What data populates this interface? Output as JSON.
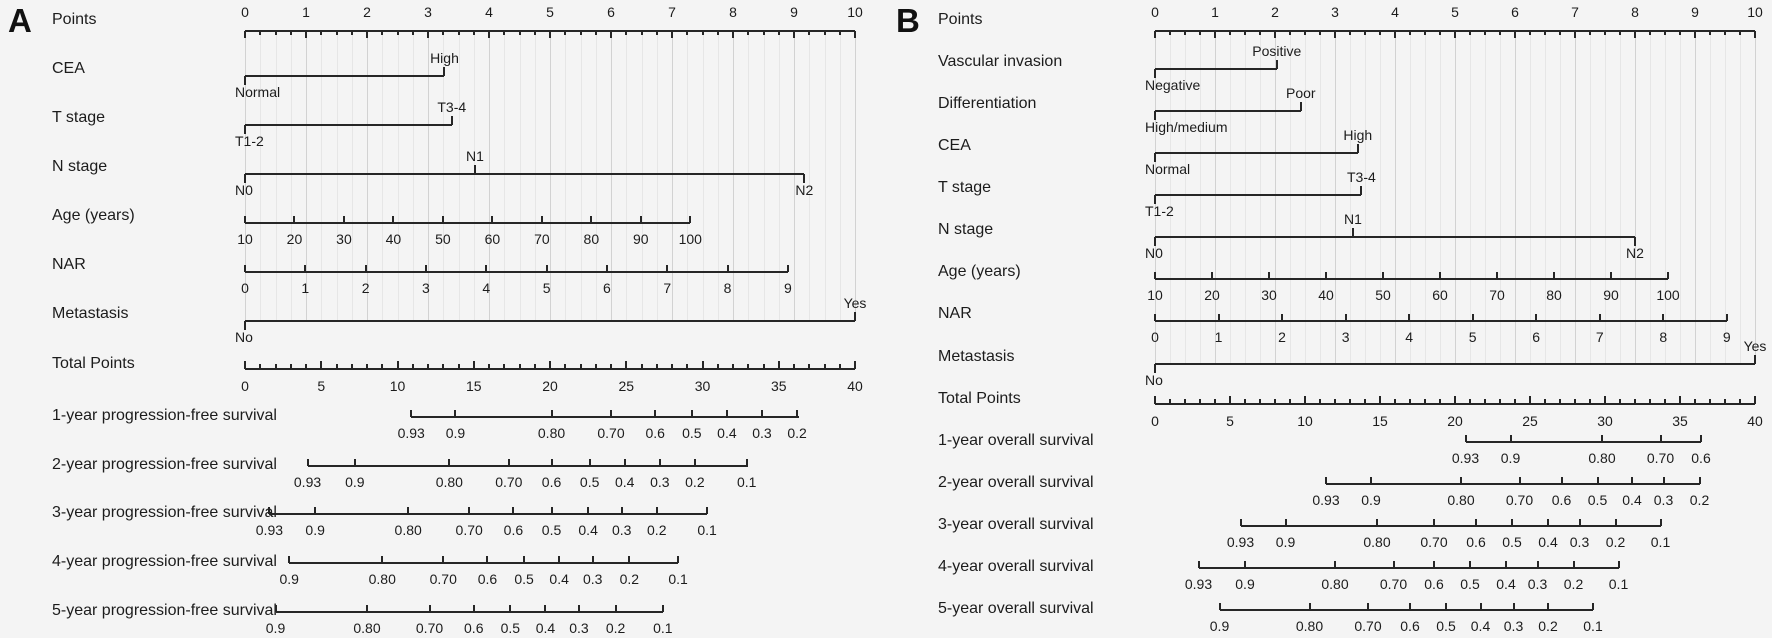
{
  "chart_data": [
    {
      "panel": "A",
      "type": "nomogram",
      "points_axis_range": [
        0,
        10
      ],
      "total_points_range": [
        0,
        40
      ],
      "grid": true,
      "rows": [
        {
          "kind": "points",
          "label": "Points",
          "tick_labels": [
            "0",
            "1",
            "2",
            "3",
            "4",
            "5",
            "6",
            "7",
            "8",
            "9",
            "10"
          ]
        },
        {
          "kind": "category",
          "label": "CEA",
          "ticks": [
            {
              "v": "Normal",
              "p": 0,
              "side": "below"
            },
            {
              "v": "High",
              "p": 3.27,
              "side": "above"
            }
          ]
        },
        {
          "kind": "category",
          "label": "T stage",
          "ticks": [
            {
              "v": "T1-2",
              "p": 0,
              "side": "below"
            },
            {
              "v": "T3-4",
              "p": 3.39,
              "side": "above"
            }
          ]
        },
        {
          "kind": "category",
          "label": "N stage",
          "ticks": [
            {
              "v": "N0",
              "p": 0,
              "side": "below"
            },
            {
              "v": "N1",
              "p": 3.77,
              "side": "above"
            },
            {
              "v": "N2",
              "p": 9.17,
              "side": "below"
            }
          ]
        },
        {
          "kind": "axis",
          "label": "Age (years)",
          "start": 0,
          "end": 7.3,
          "tick_labels": [
            "10",
            "20",
            "30",
            "40",
            "50",
            "60",
            "70",
            "80",
            "90",
            "100"
          ]
        },
        {
          "kind": "axis",
          "label": "NAR",
          "start": 0,
          "end": 8.9,
          "tick_labels": [
            "0",
            "1",
            "2",
            "3",
            "4",
            "5",
            "6",
            "7",
            "8",
            "9"
          ]
        },
        {
          "kind": "category",
          "label": "Metastasis",
          "ticks": [
            {
              "v": "No",
              "p": 0,
              "side": "below"
            },
            {
              "v": "Yes",
              "p": 10,
              "side": "above"
            }
          ]
        },
        {
          "kind": "total",
          "label": "Total Points",
          "tick_labels": [
            "0",
            "5",
            "10",
            "15",
            "20",
            "25",
            "30",
            "35",
            "40"
          ]
        },
        {
          "kind": "survival",
          "label": "1-year progression-free survival",
          "line": [
            10.9,
            36.3
          ],
          "ticks": [
            {
              "v": "0.93",
              "tp": 10.9
            },
            {
              "v": "0.9",
              "tp": 13.8
            },
            {
              "v": "0.80",
              "tp": 20.1
            },
            {
              "v": "0.70",
              "tp": 24.0
            },
            {
              "v": "0.6",
              "tp": 26.9
            },
            {
              "v": "0.5",
              "tp": 29.3
            },
            {
              "v": "0.4",
              "tp": 31.6
            },
            {
              "v": "0.3",
              "tp": 33.9
            },
            {
              "v": "0.2",
              "tp": 36.2
            }
          ]
        },
        {
          "kind": "survival",
          "label": "2-year progression-free survival",
          "line": [
            4.1,
            33.0
          ],
          "ticks": [
            {
              "v": "0.93",
              "tp": 4.1
            },
            {
              "v": "0.9",
              "tp": 7.2
            },
            {
              "v": "0.80",
              "tp": 13.4
            },
            {
              "v": "0.70",
              "tp": 17.3
            },
            {
              "v": "0.6",
              "tp": 20.1
            },
            {
              "v": "0.5",
              "tp": 22.6
            },
            {
              "v": "0.4",
              "tp": 24.9
            },
            {
              "v": "0.3",
              "tp": 27.2
            },
            {
              "v": "0.2",
              "tp": 29.5
            },
            {
              "v": "0.1",
              "tp": 32.9
            }
          ]
        },
        {
          "kind": "survival",
          "label": "3-year progression-free survival",
          "line": [
            1.6,
            30.3
          ],
          "ticks": [
            {
              "v": "0.93",
              "tp": 1.6
            },
            {
              "v": "0.9",
              "tp": 4.6
            },
            {
              "v": "0.80",
              "tp": 10.7
            },
            {
              "v": "0.70",
              "tp": 14.7
            },
            {
              "v": "0.6",
              "tp": 17.6
            },
            {
              "v": "0.5",
              "tp": 20.1
            },
            {
              "v": "0.4",
              "tp": 22.5
            },
            {
              "v": "0.3",
              "tp": 24.7
            },
            {
              "v": "0.2",
              "tp": 27.0
            },
            {
              "v": "0.1",
              "tp": 30.3
            }
          ]
        },
        {
          "kind": "survival",
          "label": "4-year progression-free survival",
          "line": [
            2.9,
            28.4
          ],
          "ticks": [
            {
              "v": "0.9",
              "tp": 2.9
            },
            {
              "v": "0.80",
              "tp": 9.0
            },
            {
              "v": "0.70",
              "tp": 13.0
            },
            {
              "v": "0.6",
              "tp": 15.9
            },
            {
              "v": "0.5",
              "tp": 18.3
            },
            {
              "v": "0.4",
              "tp": 20.6
            },
            {
              "v": "0.3",
              "tp": 22.8
            },
            {
              "v": "0.2",
              "tp": 25.2
            },
            {
              "v": "0.1",
              "tp": 28.4
            }
          ]
        },
        {
          "kind": "survival",
          "label": "5-year progression-free survival",
          "line": [
            2.0,
            27.4
          ],
          "ticks": [
            {
              "v": "0.9",
              "tp": 2.0
            },
            {
              "v": "0.80",
              "tp": 8.0
            },
            {
              "v": "0.70",
              "tp": 12.1
            },
            {
              "v": "0.6",
              "tp": 15.0
            },
            {
              "v": "0.5",
              "tp": 17.4
            },
            {
              "v": "0.4",
              "tp": 19.7
            },
            {
              "v": "0.3",
              "tp": 21.9
            },
            {
              "v": "0.2",
              "tp": 24.3
            },
            {
              "v": "0.1",
              "tp": 27.4
            }
          ]
        }
      ]
    },
    {
      "panel": "B",
      "type": "nomogram",
      "points_axis_range": [
        0,
        10
      ],
      "total_points_range": [
        0,
        40
      ],
      "grid": true,
      "rows": [
        {
          "kind": "points",
          "label": "Points",
          "tick_labels": [
            "0",
            "1",
            "2",
            "3",
            "4",
            "5",
            "6",
            "7",
            "8",
            "9",
            "10"
          ]
        },
        {
          "kind": "category",
          "label": "Vascular invasion",
          "ticks": [
            {
              "v": "Negative",
              "p": 0,
              "side": "below"
            },
            {
              "v": "Positive",
              "p": 2.03,
              "side": "above"
            }
          ]
        },
        {
          "kind": "category",
          "label": "Differentiation",
          "ticks": [
            {
              "v": "High/medium",
              "p": 0,
              "side": "below"
            },
            {
              "v": "Poor",
              "p": 2.43,
              "side": "above"
            }
          ]
        },
        {
          "kind": "category",
          "label": "CEA",
          "ticks": [
            {
              "v": "Normal",
              "p": 0,
              "side": "below"
            },
            {
              "v": "High",
              "p": 3.38,
              "side": "above"
            }
          ]
        },
        {
          "kind": "category",
          "label": "T stage",
          "ticks": [
            {
              "v": "T1-2",
              "p": 0,
              "side": "below"
            },
            {
              "v": "T3-4",
              "p": 3.44,
              "side": "above"
            }
          ]
        },
        {
          "kind": "category",
          "label": "N stage",
          "ticks": [
            {
              "v": "N0",
              "p": 0,
              "side": "below"
            },
            {
              "v": "N1",
              "p": 3.3,
              "side": "above"
            },
            {
              "v": "N2",
              "p": 8.0,
              "side": "below"
            }
          ]
        },
        {
          "kind": "axis",
          "label": "Age (years)",
          "start": 0,
          "end": 8.55,
          "tick_labels": [
            "10",
            "20",
            "30",
            "40",
            "50",
            "60",
            "70",
            "80",
            "90",
            "100"
          ]
        },
        {
          "kind": "axis",
          "label": "NAR",
          "start": 0,
          "end": 9.53,
          "tick_labels": [
            "0",
            "1",
            "2",
            "3",
            "4",
            "5",
            "6",
            "7",
            "8",
            "9"
          ]
        },
        {
          "kind": "category",
          "label": "Metastasis",
          "ticks": [
            {
              "v": "No",
              "p": 0,
              "side": "below"
            },
            {
              "v": "Yes",
              "p": 10,
              "side": "above"
            }
          ]
        },
        {
          "kind": "total",
          "label": "Total Points",
          "tick_labels": [
            "0",
            "5",
            "10",
            "15",
            "20",
            "25",
            "30",
            "35",
            "40"
          ]
        },
        {
          "kind": "survival",
          "label": "1-year overall survival",
          "line": [
            20.7,
            36.4
          ],
          "ticks": [
            {
              "v": "0.93",
              "tp": 20.7
            },
            {
              "v": "0.9",
              "tp": 23.7
            },
            {
              "v": "0.80",
              "tp": 29.8
            },
            {
              "v": "0.70",
              "tp": 33.7
            },
            {
              "v": "0.6",
              "tp": 36.4
            }
          ]
        },
        {
          "kind": "survival",
          "label": "2-year overall survival",
          "line": [
            11.4,
            36.3
          ],
          "ticks": [
            {
              "v": "0.93",
              "tp": 11.4
            },
            {
              "v": "0.9",
              "tp": 14.4
            },
            {
              "v": "0.80",
              "tp": 20.4
            },
            {
              "v": "0.70",
              "tp": 24.3
            },
            {
              "v": "0.6",
              "tp": 27.1
            },
            {
              "v": "0.5",
              "tp": 29.5
            },
            {
              "v": "0.4",
              "tp": 31.8
            },
            {
              "v": "0.3",
              "tp": 33.9
            },
            {
              "v": "0.2",
              "tp": 36.3
            }
          ]
        },
        {
          "kind": "survival",
          "label": "3-year overall survival",
          "line": [
            5.7,
            33.7
          ],
          "ticks": [
            {
              "v": "0.93",
              "tp": 5.7
            },
            {
              "v": "0.9",
              "tp": 8.7
            },
            {
              "v": "0.80",
              "tp": 14.8
            },
            {
              "v": "0.70",
              "tp": 18.6
            },
            {
              "v": "0.6",
              "tp": 21.4
            },
            {
              "v": "0.5",
              "tp": 23.8
            },
            {
              "v": "0.4",
              "tp": 26.2
            },
            {
              "v": "0.3",
              "tp": 28.3
            },
            {
              "v": "0.2",
              "tp": 30.7
            },
            {
              "v": "0.1",
              "tp": 33.7
            }
          ]
        },
        {
          "kind": "survival",
          "label": "4-year overall survival",
          "line": [
            2.9,
            30.9
          ],
          "ticks": [
            {
              "v": "0.93",
              "tp": 2.9
            },
            {
              "v": "0.9",
              "tp": 6.0
            },
            {
              "v": "0.80",
              "tp": 12.0
            },
            {
              "v": "0.70",
              "tp": 15.9
            },
            {
              "v": "0.6",
              "tp": 18.6
            },
            {
              "v": "0.5",
              "tp": 21.0
            },
            {
              "v": "0.4",
              "tp": 23.4
            },
            {
              "v": "0.3",
              "tp": 25.5
            },
            {
              "v": "0.2",
              "tp": 27.9
            },
            {
              "v": "0.1",
              "tp": 30.9
            }
          ]
        },
        {
          "kind": "survival",
          "label": "5-year overall survival",
          "line": [
            4.3,
            29.2
          ],
          "ticks": [
            {
              "v": "0.9",
              "tp": 4.3
            },
            {
              "v": "0.80",
              "tp": 10.3
            },
            {
              "v": "0.70",
              "tp": 14.2
            },
            {
              "v": "0.6",
              "tp": 17.0
            },
            {
              "v": "0.5",
              "tp": 19.4
            },
            {
              "v": "0.4",
              "tp": 21.7
            },
            {
              "v": "0.3",
              "tp": 23.9
            },
            {
              "v": "0.2",
              "tp": 26.2
            },
            {
              "v": "0.1",
              "tp": 29.2
            }
          ]
        }
      ]
    }
  ]
}
